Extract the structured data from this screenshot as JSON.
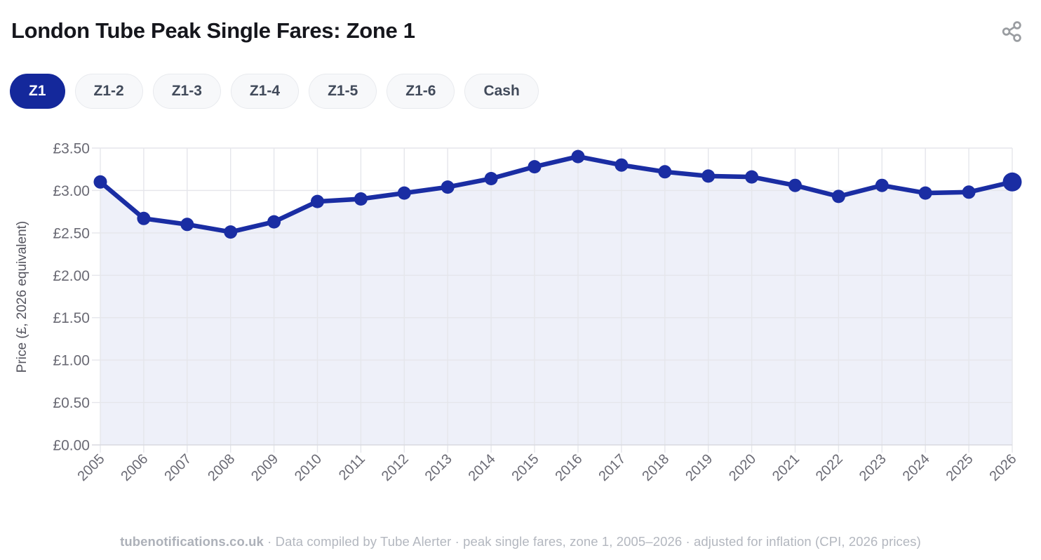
{
  "header": {
    "title": "London Tube Peak Single Fares: Zone 1"
  },
  "tabs": [
    {
      "label": "Z1",
      "active": true
    },
    {
      "label": "Z1-2",
      "active": false
    },
    {
      "label": "Z1-3",
      "active": false
    },
    {
      "label": "Z1-4",
      "active": false
    },
    {
      "label": "Z1-5",
      "active": false
    },
    {
      "label": "Z1-6",
      "active": false
    },
    {
      "label": "Cash",
      "active": false
    }
  ],
  "chart_data": {
    "type": "area",
    "title": "London Tube Peak Single Fares: Zone 1",
    "x": [
      2005,
      2006,
      2007,
      2008,
      2009,
      2010,
      2011,
      2012,
      2013,
      2014,
      2015,
      2016,
      2017,
      2018,
      2019,
      2020,
      2021,
      2022,
      2023,
      2024,
      2025,
      2026
    ],
    "series": [
      {
        "name": "Zone 1 peak single fare (2026 prices)",
        "values": [
          3.1,
          2.67,
          2.6,
          2.51,
          2.63,
          2.87,
          2.9,
          2.97,
          3.04,
          3.14,
          3.28,
          3.4,
          3.3,
          3.22,
          3.17,
          3.16,
          3.06,
          2.93,
          3.06,
          2.97,
          2.98,
          3.1
        ]
      }
    ],
    "xlabel": "",
    "ylabel": "Price (£, 2026 equivalent)",
    "ylim": [
      0,
      3.5
    ],
    "ytick_step": 0.5,
    "currency_prefix": "£",
    "grid": true,
    "legend": false,
    "last_point_emphasized": true,
    "colors": {
      "line": "#1a2da3",
      "point": "#1a2da3",
      "fill": "#eef0f9",
      "active_tab": "#14289b",
      "gridline": "#e5e6eb",
      "axis_line": "#d8d9df",
      "tick_text": "#6a6a74",
      "axis_title_text": "#54545e",
      "share_icon": "#9a9da1"
    }
  },
  "footer": {
    "site": "tubenotifications.co.uk",
    "note": " · Data compiled by Tube Alerter · peak single fares, zone 1, 2005–2026 · adjusted for inflation (CPI, 2026 prices)"
  }
}
